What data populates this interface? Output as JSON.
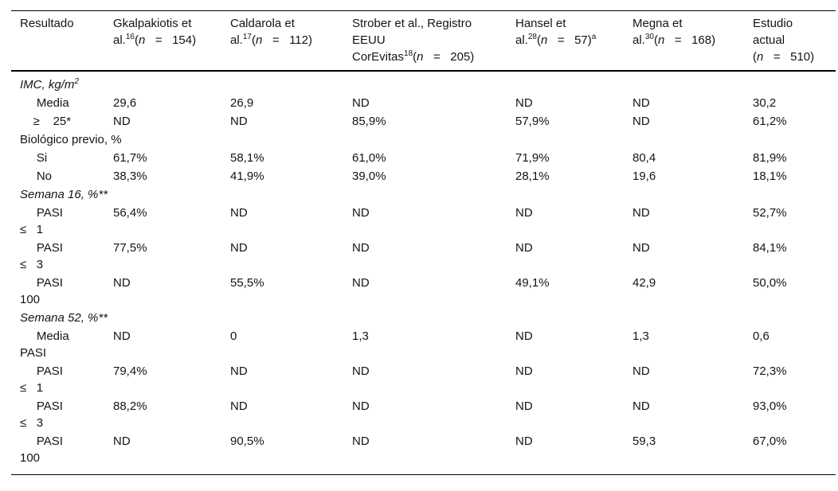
{
  "table": {
    "columns": [
      {
        "id": "resultado",
        "segments": [
          {
            "t": "Resultado"
          }
        ]
      },
      {
        "id": "gkalpakiotis",
        "segments": [
          {
            "t": "Gkalpakiotis et\nal."
          },
          {
            "t": "16",
            "sup": true
          },
          {
            "t": "("
          },
          {
            "t": "n",
            "i": true
          },
          {
            "t": "   =   154)"
          }
        ]
      },
      {
        "id": "caldarola",
        "segments": [
          {
            "t": "Caldarola et\nal."
          },
          {
            "t": "17",
            "sup": true
          },
          {
            "t": "("
          },
          {
            "t": "n",
            "i": true
          },
          {
            "t": "   =   112)"
          }
        ]
      },
      {
        "id": "strober",
        "segments": [
          {
            "t": "Strober et al., Registro\nEEUU\nCorEvitas"
          },
          {
            "t": "18",
            "sup": true
          },
          {
            "t": "("
          },
          {
            "t": "n",
            "i": true
          },
          {
            "t": "   =   205)"
          }
        ]
      },
      {
        "id": "hansel",
        "segments": [
          {
            "t": "Hansel et\nal."
          },
          {
            "t": "28",
            "sup": true
          },
          {
            "t": "("
          },
          {
            "t": "n",
            "i": true
          },
          {
            "t": "   =   57)"
          },
          {
            "t": "a",
            "sup": true
          }
        ]
      },
      {
        "id": "megna",
        "segments": [
          {
            "t": "Megna et\nal."
          },
          {
            "t": "30",
            "sup": true
          },
          {
            "t": "("
          },
          {
            "t": "n",
            "i": true
          },
          {
            "t": "   =   168)"
          }
        ]
      },
      {
        "id": "estudio-actual",
        "segments": [
          {
            "t": "Estudio\nactual\n("
          },
          {
            "t": "n",
            "i": true
          },
          {
            "t": "   =   510)"
          }
        ]
      }
    ],
    "rows": [
      {
        "section": true,
        "italic": true,
        "label": [
          {
            "t": "IMC, kg/m"
          },
          {
            "t": "2",
            "sup": true
          }
        ]
      },
      {
        "label": [
          {
            "t": "     Media"
          }
        ],
        "values": [
          "29,6",
          "26,9",
          "ND",
          "ND",
          "ND",
          "30,2"
        ]
      },
      {
        "label": [
          {
            "t": "    ≥    25*"
          }
        ],
        "values": [
          "ND",
          "ND",
          "85,9%",
          "57,9%",
          "ND",
          "61,2%"
        ]
      },
      {
        "section": true,
        "label": [
          {
            "t": "Biológico previo, %"
          }
        ]
      },
      {
        "label": [
          {
            "t": "     Si"
          }
        ],
        "values": [
          "61,7%",
          "58,1%",
          "61,0%",
          "71,9%",
          "80,4",
          "81,9%"
        ]
      },
      {
        "label": [
          {
            "t": "     No"
          }
        ],
        "values": [
          "38,3%",
          "41,9%",
          "39,0%",
          "28,1%",
          "19,6",
          "18,1%"
        ]
      },
      {
        "section": true,
        "italic": true,
        "label": [
          {
            "t": "Semana 16, %**"
          }
        ]
      },
      {
        "label": [
          {
            "t": "     PASI\n≤   1"
          }
        ],
        "values": [
          "56,4%",
          "ND",
          "ND",
          "ND",
          "ND",
          "52,7%"
        ]
      },
      {
        "label": [
          {
            "t": "     PASI\n≤   3"
          }
        ],
        "values": [
          "77,5%",
          "ND",
          "ND",
          "ND",
          "ND",
          "84,1%"
        ]
      },
      {
        "label": [
          {
            "t": "     PASI\n100"
          }
        ],
        "values": [
          "ND",
          "55,5%",
          "ND",
          "49,1%",
          "42,9",
          "50,0%"
        ]
      },
      {
        "section": true,
        "italic": true,
        "label": [
          {
            "t": "Semana 52, %**"
          }
        ]
      },
      {
        "label": [
          {
            "t": "     Media\nPASI"
          }
        ],
        "values": [
          "ND",
          "0",
          "1,3",
          "ND",
          "1,3",
          "0,6"
        ]
      },
      {
        "label": [
          {
            "t": "     PASI\n≤   1"
          }
        ],
        "values": [
          "79,4%",
          "ND",
          "ND",
          "ND",
          "ND",
          "72,3%"
        ]
      },
      {
        "label": [
          {
            "t": "     PASI\n≤   3"
          }
        ],
        "values": [
          "88,2%",
          "ND",
          "ND",
          "ND",
          "ND",
          "93,0%"
        ]
      },
      {
        "label": [
          {
            "t": "     PASI\n100"
          }
        ],
        "values": [
          "ND",
          "90,5%",
          "ND",
          "ND",
          "59,3",
          "67,0%"
        ]
      }
    ]
  }
}
